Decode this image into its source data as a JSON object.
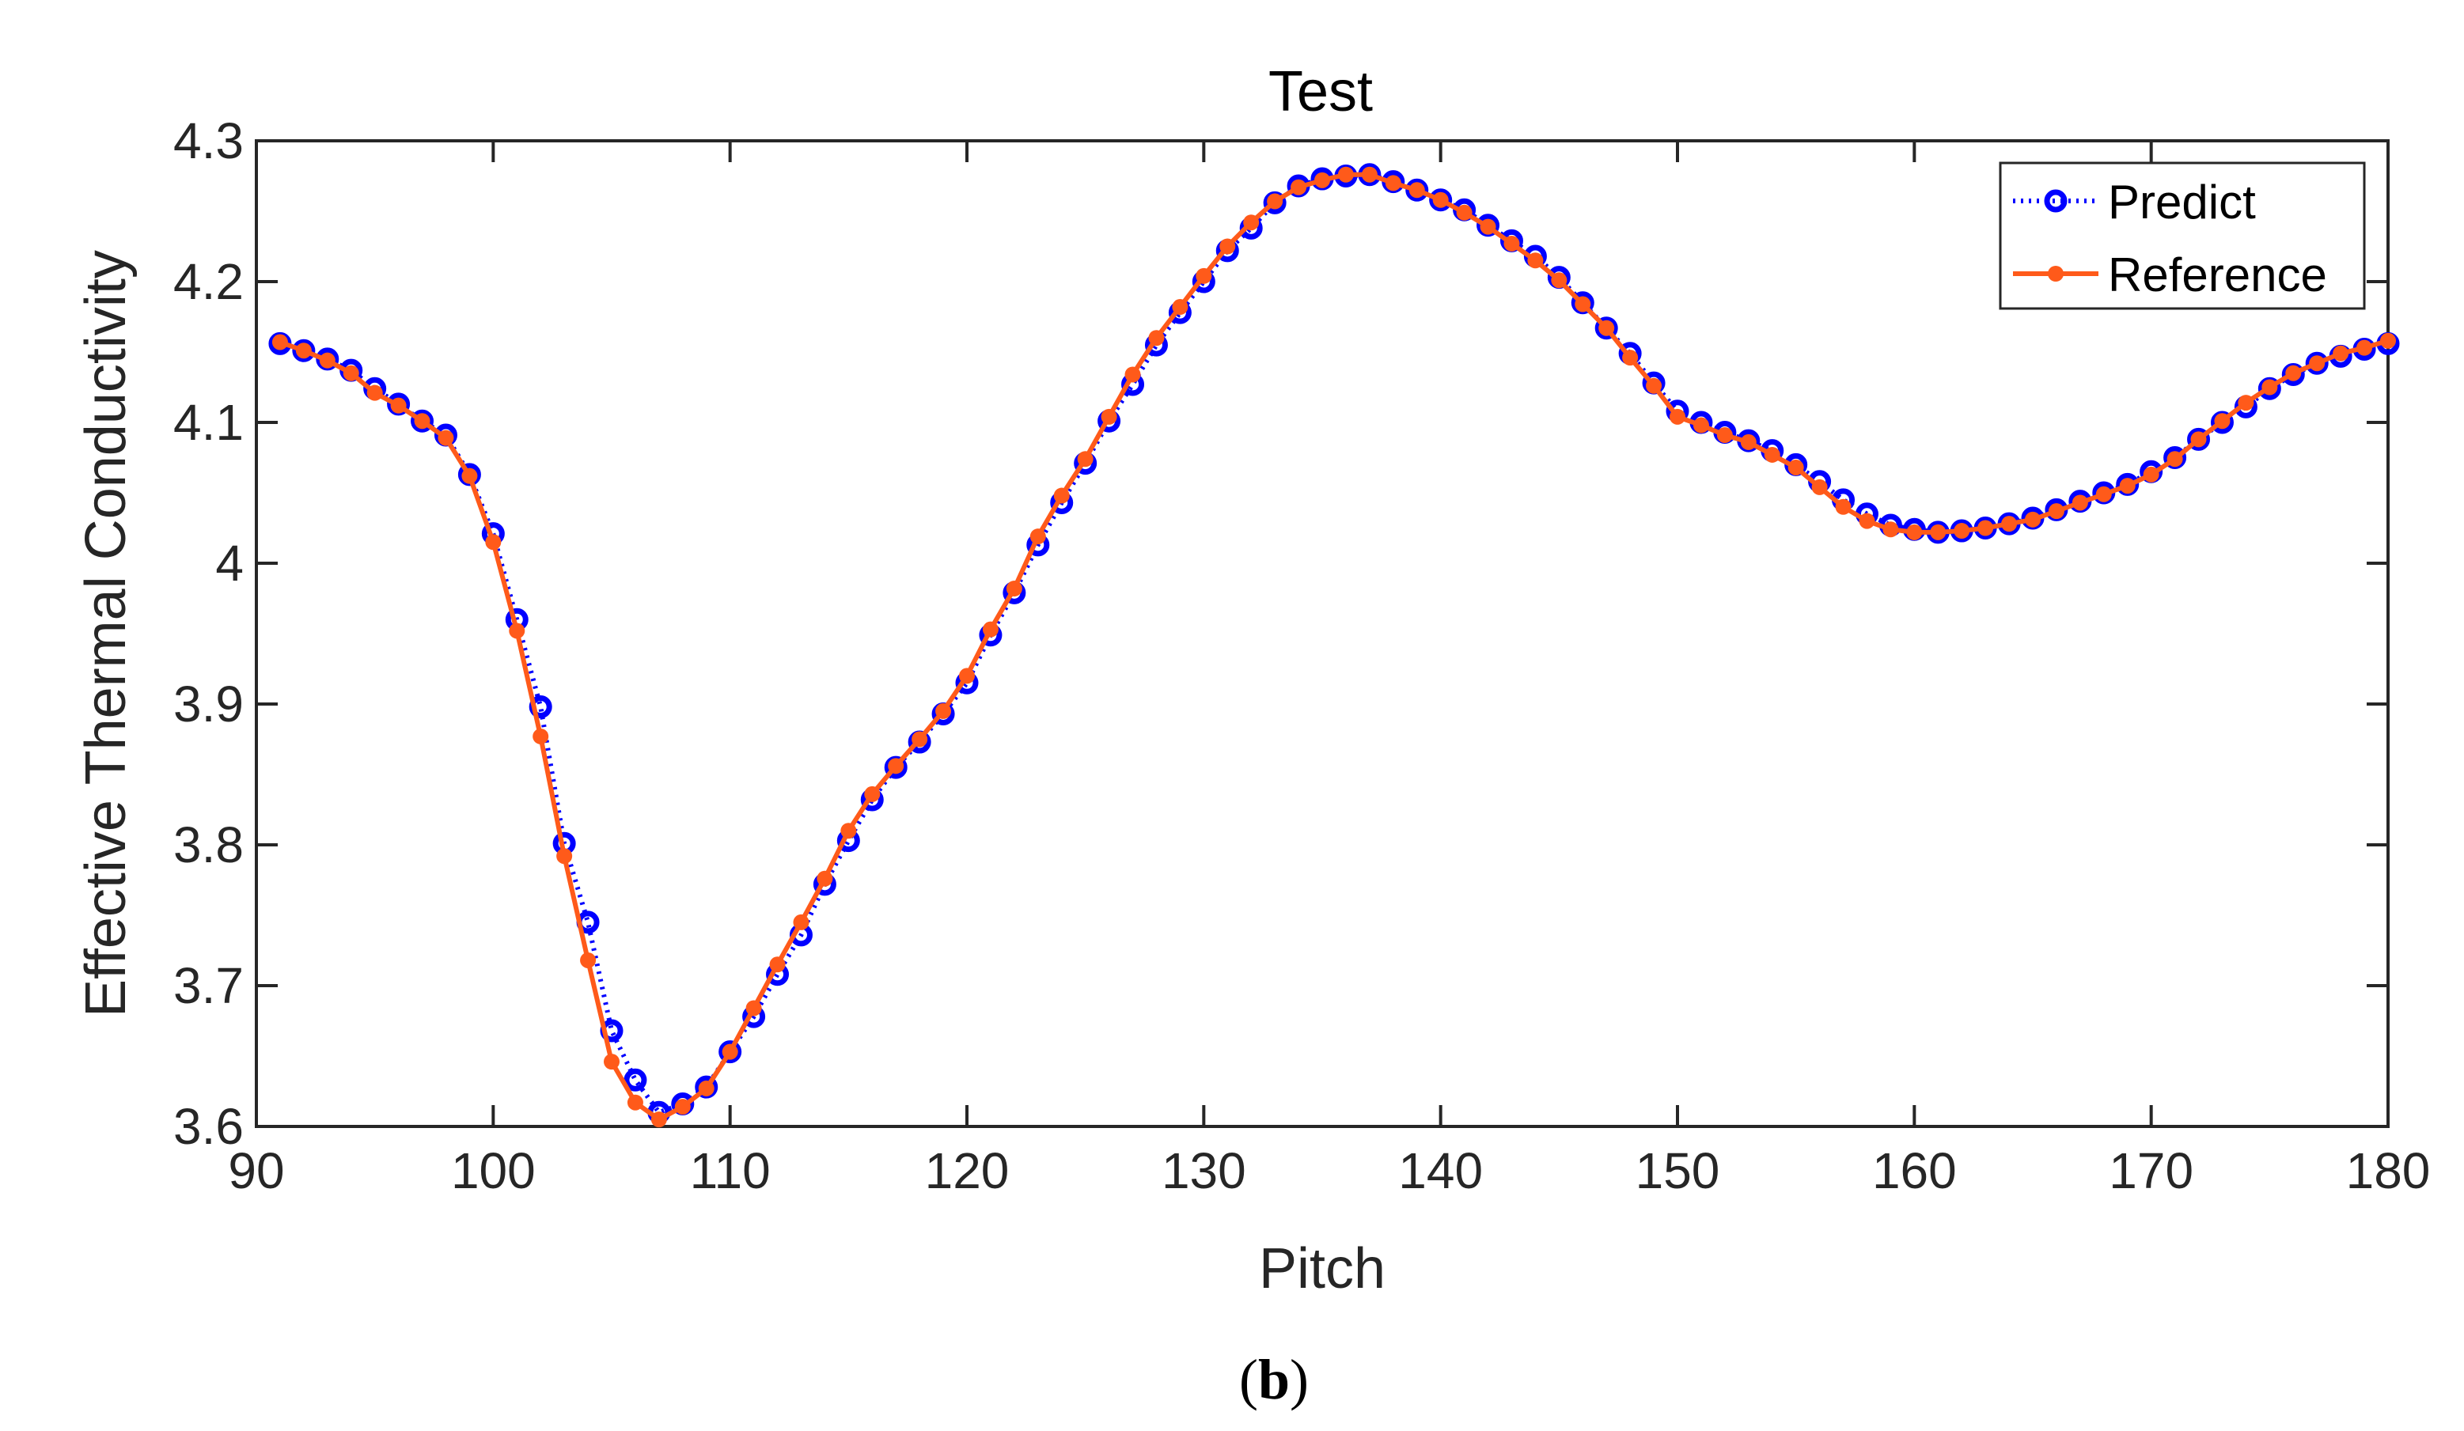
{
  "chart_data": {
    "type": "line",
    "title": "Test",
    "xlabel": "Pitch",
    "ylabel": "Effective Thermal Conductivity",
    "xlim": [
      90,
      180
    ],
    "ylim": [
      3.6,
      4.3
    ],
    "xticks": [
      90,
      100,
      110,
      120,
      130,
      140,
      150,
      160,
      170,
      180
    ],
    "yticks": [
      3.6,
      3.7,
      3.8,
      3.9,
      4,
      4.1,
      4.2,
      4.3
    ],
    "xtick_labels": [
      "90",
      "100",
      "110",
      "120",
      "130",
      "140",
      "150",
      "160",
      "170",
      "180"
    ],
    "ytick_labels": [
      "3.6",
      "3.7",
      "3.8",
      "3.9",
      "4",
      "4.1",
      "4.2",
      "4.3"
    ],
    "grid": false,
    "legend_position": "top-right",
    "x": [
      91,
      92,
      93,
      94,
      95,
      96,
      97,
      98,
      99,
      100,
      101,
      102,
      103,
      104,
      105,
      106,
      107,
      108,
      109,
      110,
      111,
      112,
      113,
      114,
      115,
      116,
      117,
      118,
      119,
      120,
      121,
      122,
      123,
      124,
      125,
      126,
      127,
      128,
      129,
      130,
      131,
      132,
      133,
      134,
      135,
      136,
      137,
      138,
      139,
      140,
      141,
      142,
      143,
      144,
      145,
      146,
      147,
      148,
      149,
      150,
      151,
      152,
      153,
      154,
      155,
      156,
      157,
      158,
      159,
      160,
      161,
      162,
      163,
      164,
      165,
      166,
      167,
      168,
      169,
      170,
      171,
      172,
      173,
      174,
      175,
      176,
      177,
      178,
      179,
      180
    ],
    "series": [
      {
        "name": "Predict",
        "color": "#0000ff",
        "line_style": "dotted",
        "marker": "open-circle",
        "values": [
          4.156,
          4.151,
          4.145,
          4.137,
          4.124,
          4.113,
          4.101,
          4.091,
          4.063,
          4.021,
          3.96,
          3.898,
          3.801,
          3.745,
          3.668,
          3.633,
          3.61,
          3.616,
          3.628,
          3.653,
          3.678,
          3.708,
          3.736,
          3.772,
          3.803,
          3.832,
          3.855,
          3.873,
          3.893,
          3.915,
          3.949,
          3.979,
          4.013,
          4.043,
          4.071,
          4.101,
          4.127,
          4.155,
          4.178,
          4.2,
          4.222,
          4.238,
          4.256,
          4.268,
          4.273,
          4.275,
          4.276,
          4.271,
          4.265,
          4.258,
          4.251,
          4.24,
          4.229,
          4.218,
          4.203,
          4.185,
          4.167,
          4.149,
          4.128,
          4.108,
          4.1,
          4.093,
          4.087,
          4.08,
          4.07,
          4.058,
          4.045,
          4.035,
          4.027,
          4.024,
          4.022,
          4.023,
          4.025,
          4.028,
          4.032,
          4.038,
          4.044,
          4.05,
          4.056,
          4.065,
          4.075,
          4.088,
          4.1,
          4.111,
          4.124,
          4.134,
          4.142,
          4.147,
          4.152,
          4.156
        ]
      },
      {
        "name": "Reference",
        "color": "#ff5a1a",
        "line_style": "solid",
        "marker": "filled-circle",
        "values": [
          4.157,
          4.151,
          4.144,
          4.135,
          4.121,
          4.112,
          4.101,
          4.089,
          4.062,
          4.015,
          3.952,
          3.877,
          3.792,
          3.718,
          3.646,
          3.617,
          3.605,
          3.614,
          3.627,
          3.653,
          3.684,
          3.715,
          3.745,
          3.776,
          3.81,
          3.836,
          3.856,
          3.875,
          3.895,
          3.92,
          3.953,
          3.982,
          4.019,
          4.048,
          4.074,
          4.104,
          4.134,
          4.16,
          4.182,
          4.204,
          4.225,
          4.242,
          4.257,
          4.267,
          4.272,
          4.276,
          4.276,
          4.27,
          4.265,
          4.258,
          4.249,
          4.239,
          4.227,
          4.215,
          4.201,
          4.184,
          4.167,
          4.146,
          4.126,
          4.104,
          4.098,
          4.091,
          4.086,
          4.077,
          4.068,
          4.054,
          4.04,
          4.03,
          4.024,
          4.022,
          4.022,
          4.023,
          4.025,
          4.028,
          4.031,
          4.037,
          4.043,
          4.049,
          4.055,
          4.063,
          4.074,
          4.088,
          4.101,
          4.114,
          4.125,
          4.135,
          4.142,
          4.149,
          4.153,
          4.158
        ]
      }
    ]
  },
  "caption": {
    "open_paren": "(",
    "letter": "b",
    "close_paren": ")"
  }
}
